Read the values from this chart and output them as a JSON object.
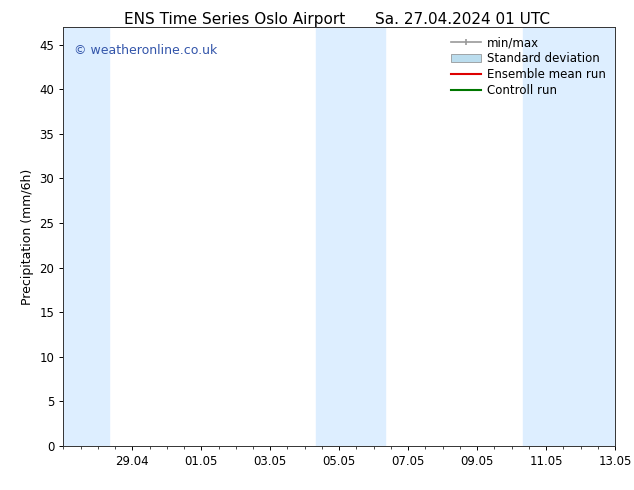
{
  "title_left": "ENS Time Series Oslo Airport",
  "title_right": "Sa. 27.04.2024 01 UTC",
  "ylabel": "Precipitation (mm/6h)",
  "ylim": [
    0,
    47
  ],
  "yticks": [
    0,
    5,
    10,
    15,
    20,
    25,
    30,
    35,
    40,
    45
  ],
  "xtick_labels": [
    "29.04",
    "01.05",
    "03.05",
    "05.05",
    "07.05",
    "09.05",
    "11.05",
    "13.05"
  ],
  "xmin": 0.0,
  "xmax": 16.0,
  "background_color": "#ffffff",
  "plot_bg_color": "#ffffff",
  "watermark": "© weatheronline.co.uk",
  "watermark_color": "#3355aa",
  "shaded_band_color": "#ddeeff",
  "shaded_bands": [
    {
      "x_start": 0.0,
      "x_end": 1.33
    },
    {
      "x_start": 7.33,
      "x_end": 9.33
    },
    {
      "x_start": 13.33,
      "x_end": 16.0
    }
  ],
  "legend_entries": [
    {
      "label": "min/max",
      "color": "#999999",
      "style": "errbar"
    },
    {
      "label": "Standard deviation",
      "color": "#bbddee",
      "style": "rect"
    },
    {
      "label": "Ensemble mean run",
      "color": "#dd0000",
      "style": "line"
    },
    {
      "label": "Controll run",
      "color": "#007700",
      "style": "line"
    }
  ],
  "font_size_title": 11,
  "font_size_axis_label": 9,
  "font_size_tick": 8.5,
  "font_size_legend": 8.5,
  "font_size_watermark": 9
}
